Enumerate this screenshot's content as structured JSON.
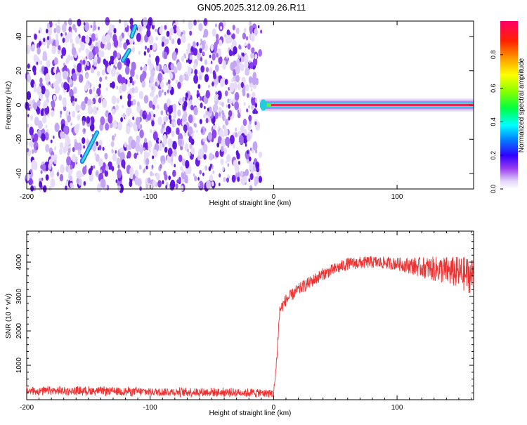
{
  "title": "GN05.2025.312.09.26.R11",
  "chart_data": [
    {
      "type": "heatmap",
      "xlabel": "Height of straight line (km)",
      "ylabel": "Frequency (Hz)",
      "xlim": [
        -200,
        162
      ],
      "ylim": [
        -49,
        49
      ],
      "x_ticks": [
        -200,
        -100,
        0,
        100
      ],
      "y_ticks": [
        -40,
        -20,
        0,
        20,
        40
      ],
      "x_tick_labels": [
        "-200",
        "-100",
        "0",
        "100"
      ],
      "y_tick_labels": [
        "-40",
        "-20",
        "0",
        "20",
        "40"
      ],
      "noise_region_x": [
        -200,
        -10
      ],
      "signal_line": {
        "x_start": -10,
        "x_end": 162,
        "frequency": 0
      },
      "streaks": [
        {
          "x0": -155,
          "y0": -33,
          "x1": -143,
          "y1": -16
        },
        {
          "x0": -122,
          "y0": 26,
          "x1": -117,
          "y1": 32
        },
        {
          "x0": -115,
          "y0": 40,
          "x1": -112,
          "y1": 46
        }
      ],
      "colorbar": {
        "label": "Normalized spectral amplitude",
        "range": [
          0,
          1
        ],
        "ticks": [
          0.0,
          0.2,
          0.4,
          0.6,
          0.8
        ],
        "tick_labels": [
          "0.0",
          "0.2",
          "0.4",
          "0.6",
          "0.8"
        ]
      }
    },
    {
      "type": "line",
      "xlabel": "Height of straight line (km)",
      "ylabel": "SNR (10 * v/v)",
      "xlim": [
        -200,
        162
      ],
      "ylim": [
        0,
        4900
      ],
      "x_ticks": [
        -200,
        -100,
        0,
        100
      ],
      "y_ticks": [
        1000,
        2000,
        3000,
        4000
      ],
      "x_tick_labels": [
        "-200",
        "-100",
        "0",
        "100"
      ],
      "y_tick_labels": [
        "1000",
        "2000",
        "3000",
        "4000"
      ],
      "series_color": "#ee3333",
      "series": [
        {
          "name": "SNR",
          "x": [
            -200,
            -150,
            -100,
            -50,
            -10,
            0,
            2,
            3,
            5,
            10,
            20,
            40,
            60,
            80,
            100,
            120,
            140,
            162
          ],
          "values": [
            250,
            260,
            230,
            220,
            200,
            180,
            900,
            1500,
            2600,
            2900,
            3200,
            3650,
            3950,
            4000,
            3950,
            3850,
            3750,
            3600
          ]
        }
      ]
    }
  ]
}
